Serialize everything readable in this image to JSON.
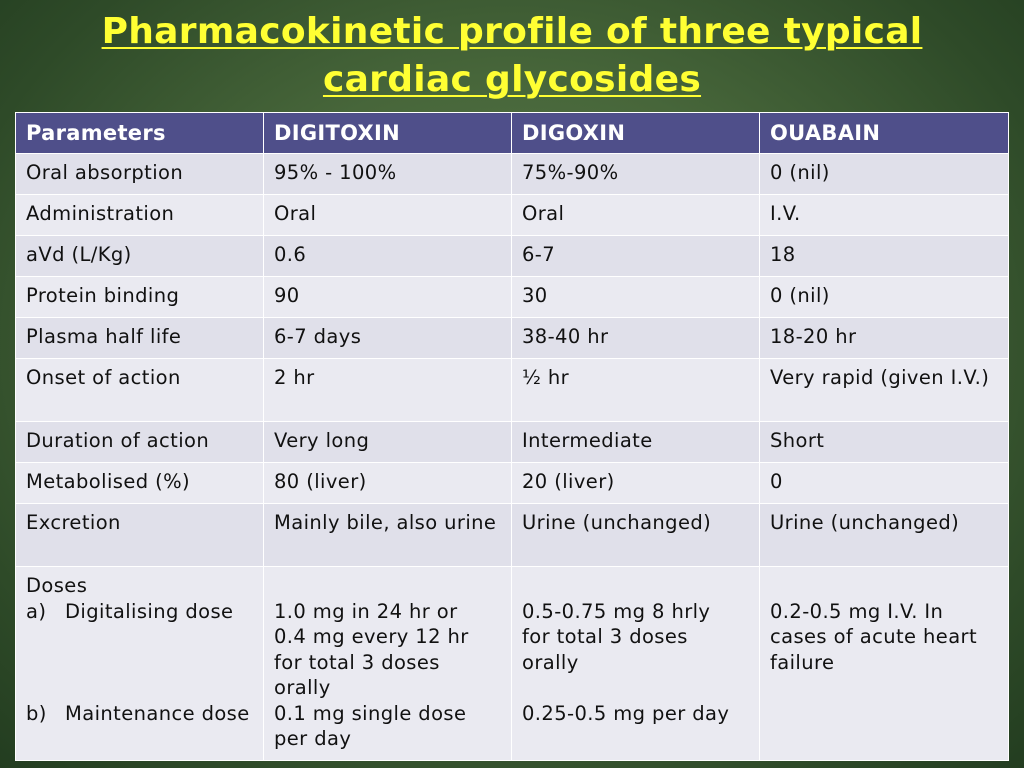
{
  "title": {
    "line1": "Pharmacokinetic profile of three typical",
    "line2": "cardiac glycosides"
  },
  "table": {
    "headers": [
      "Parameters",
      "DIGITOXIN",
      "DIGOXIN",
      "OUABAIN"
    ],
    "rows": [
      [
        "Oral absorption",
        "95% - 100%",
        "75%-90%",
        "0 (nil)"
      ],
      [
        "Administration",
        "Oral",
        "Oral",
        "I.V."
      ],
      [
        "aVd (L/Kg)",
        "0.6",
        "6-7",
        "18"
      ],
      [
        "Protein binding",
        "90",
        "30",
        "0 (nil)"
      ],
      [
        "Plasma half life",
        "6-7 days",
        "38-40 hr",
        "18-20 hr"
      ],
      [
        "Onset of action",
        "2 hr",
        "½ hr",
        "Very rapid  (given I.V.)"
      ],
      [
        "Duration of action",
        "Very long",
        "Intermediate",
        "Short"
      ],
      [
        "Metabolised (%)",
        "80 (liver)",
        "20 (liver)",
        "0"
      ],
      [
        "Excretion",
        "Mainly bile, also urine",
        "Urine (unchanged)",
        "Urine (unchanged)"
      ]
    ],
    "doses": {
      "label": "Doses",
      "a_marker": "a)",
      "a_label": "Digitalising dose",
      "b_marker": "b)",
      "b_label": "Maintenance dose",
      "digitoxin": {
        "a": [
          "1.0 mg in 24 hr or",
          "0.4 mg every 12 hr",
          "for total 3 doses",
          "orally"
        ],
        "b": [
          "0.1 mg single dose",
          "per day"
        ]
      },
      "digoxin": {
        "a": [
          "0.5-0.75 mg 8 hrly",
          "for total 3 doses",
          "orally"
        ],
        "b": [
          "0.25-0.5 mg per day"
        ]
      },
      "ouabain": {
        "a": [
          "0.2-0.5 mg I.V. In",
          "cases of acute heart",
          "failure"
        ]
      }
    }
  },
  "colors": {
    "title": "#ffff33",
    "header_bg": "#4f4f8a",
    "row_bg": "#e0e0ea",
    "background": "#47663a"
  }
}
